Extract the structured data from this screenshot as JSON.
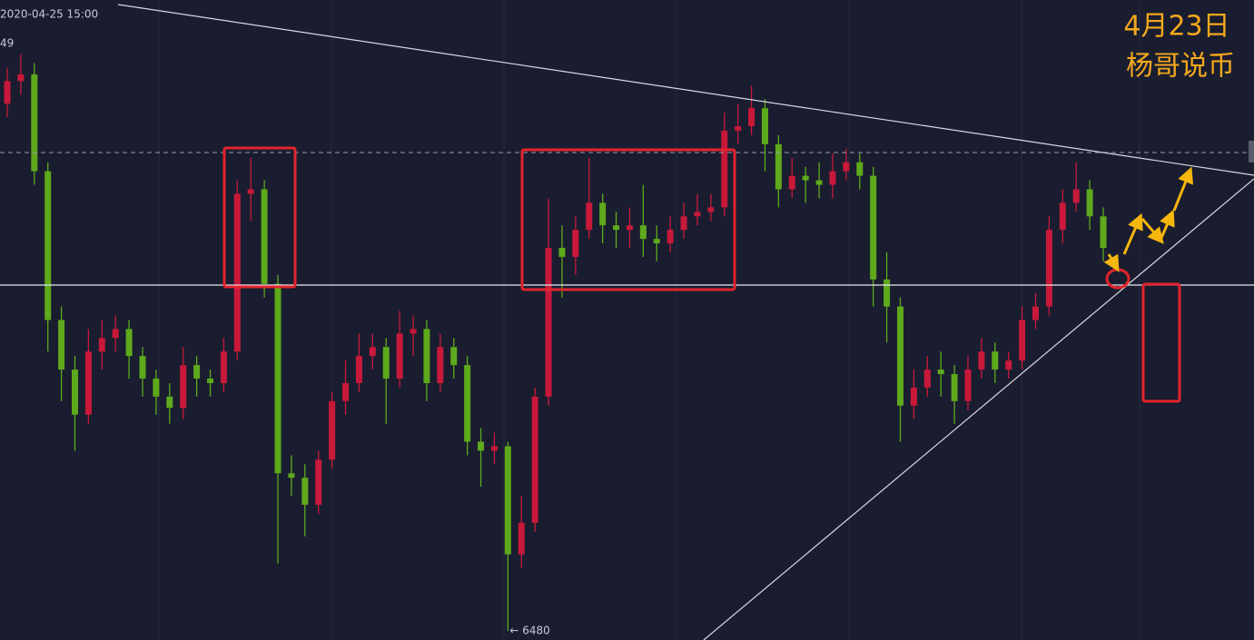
{
  "chart_data": {
    "type": "candlestick",
    "timestamp": "2020-04-25 15:00",
    "legend_fragment": "49",
    "annotations": [
      "4月23日",
      "杨哥说币"
    ],
    "low_marker": {
      "value": 6480,
      "label": "← 6480"
    },
    "up_color": "#c8193a",
    "down_color": "#5ea91c",
    "ylim": [
      6460,
      7880
    ],
    "candles": [
      [
        7650,
        7730,
        7620,
        7700
      ],
      [
        7700,
        7760,
        7670,
        7715
      ],
      [
        7715,
        7740,
        7470,
        7500
      ],
      [
        7500,
        7520,
        7100,
        7170
      ],
      [
        7170,
        7200,
        6990,
        7060
      ],
      [
        7060,
        7090,
        6880,
        6960
      ],
      [
        6960,
        7150,
        6940,
        7100
      ],
      [
        7100,
        7170,
        7060,
        7130
      ],
      [
        7130,
        7180,
        7100,
        7150
      ],
      [
        7150,
        7170,
        7040,
        7090
      ],
      [
        7090,
        7110,
        7000,
        7040
      ],
      [
        7040,
        7060,
        6960,
        7000
      ],
      [
        7000,
        7030,
        6940,
        6975
      ],
      [
        6975,
        7110,
        6950,
        7070
      ],
      [
        7070,
        7090,
        7000,
        7040
      ],
      [
        7040,
        7060,
        7000,
        7030
      ],
      [
        7030,
        7130,
        7010,
        7100
      ],
      [
        7100,
        7480,
        7080,
        7450
      ],
      [
        7450,
        7530,
        7390,
        7460
      ],
      [
        7460,
        7480,
        7220,
        7250
      ],
      [
        7250,
        7270,
        6630,
        6830
      ],
      [
        6830,
        6870,
        6780,
        6820
      ],
      [
        6820,
        6850,
        6690,
        6760
      ],
      [
        6760,
        6880,
        6740,
        6860
      ],
      [
        6860,
        7010,
        6840,
        6990
      ],
      [
        6990,
        7080,
        6960,
        7030
      ],
      [
        7030,
        7140,
        7010,
        7090
      ],
      [
        7090,
        7140,
        7060,
        7110
      ],
      [
        7110,
        7130,
        6940,
        7040
      ],
      [
        7040,
        7190,
        7020,
        7140
      ],
      [
        7140,
        7180,
        7090,
        7150
      ],
      [
        7150,
        7170,
        6990,
        7030
      ],
      [
        7030,
        7140,
        7010,
        7110
      ],
      [
        7110,
        7130,
        7040,
        7070
      ],
      [
        7070,
        7090,
        6870,
        6900
      ],
      [
        6900,
        6930,
        6800,
        6880
      ],
      [
        6880,
        6920,
        6850,
        6890
      ],
      [
        6890,
        6900,
        6480,
        6650
      ],
      [
        6650,
        6780,
        6620,
        6720
      ],
      [
        6720,
        7020,
        6700,
        7000
      ],
      [
        7000,
        7440,
        6980,
        7330
      ],
      [
        7330,
        7380,
        7220,
        7310
      ],
      [
        7310,
        7400,
        7270,
        7370
      ],
      [
        7370,
        7530,
        7350,
        7430
      ],
      [
        7430,
        7450,
        7340,
        7380
      ],
      [
        7380,
        7410,
        7330,
        7370
      ],
      [
        7370,
        7420,
        7330,
        7380
      ],
      [
        7380,
        7470,
        7310,
        7350
      ],
      [
        7350,
        7380,
        7300,
        7340
      ],
      [
        7340,
        7400,
        7320,
        7370
      ],
      [
        7370,
        7430,
        7350,
        7400
      ],
      [
        7400,
        7450,
        7380,
        7410
      ],
      [
        7410,
        7450,
        7390,
        7420
      ],
      [
        7420,
        7630,
        7400,
        7590
      ],
      [
        7590,
        7650,
        7560,
        7600
      ],
      [
        7600,
        7690,
        7580,
        7640
      ],
      [
        7640,
        7660,
        7500,
        7560
      ],
      [
        7560,
        7580,
        7420,
        7460
      ],
      [
        7460,
        7530,
        7440,
        7490
      ],
      [
        7490,
        7510,
        7430,
        7480
      ],
      [
        7480,
        7520,
        7440,
        7470
      ],
      [
        7470,
        7540,
        7440,
        7500
      ],
      [
        7500,
        7550,
        7480,
        7520
      ],
      [
        7520,
        7540,
        7460,
        7490
      ],
      [
        7490,
        7510,
        7200,
        7260
      ],
      [
        7260,
        7320,
        7120,
        7200
      ],
      [
        7200,
        7220,
        6900,
        6980
      ],
      [
        6980,
        7060,
        6950,
        7020
      ],
      [
        7020,
        7090,
        7000,
        7060
      ],
      [
        7060,
        7100,
        7000,
        7050
      ],
      [
        7050,
        7070,
        6940,
        6990
      ],
      [
        6990,
        7090,
        6970,
        7060
      ],
      [
        7060,
        7130,
        7040,
        7100
      ],
      [
        7100,
        7120,
        7030,
        7060
      ],
      [
        7060,
        7100,
        7040,
        7080
      ],
      [
        7080,
        7200,
        7060,
        7170
      ],
      [
        7170,
        7230,
        7150,
        7200
      ],
      [
        7200,
        7400,
        7180,
        7370
      ],
      [
        7370,
        7460,
        7340,
        7430
      ],
      [
        7430,
        7520,
        7410,
        7460
      ],
      [
        7460,
        7480,
        7370,
        7400
      ],
      [
        7400,
        7420,
        7300,
        7330
      ]
    ]
  }
}
